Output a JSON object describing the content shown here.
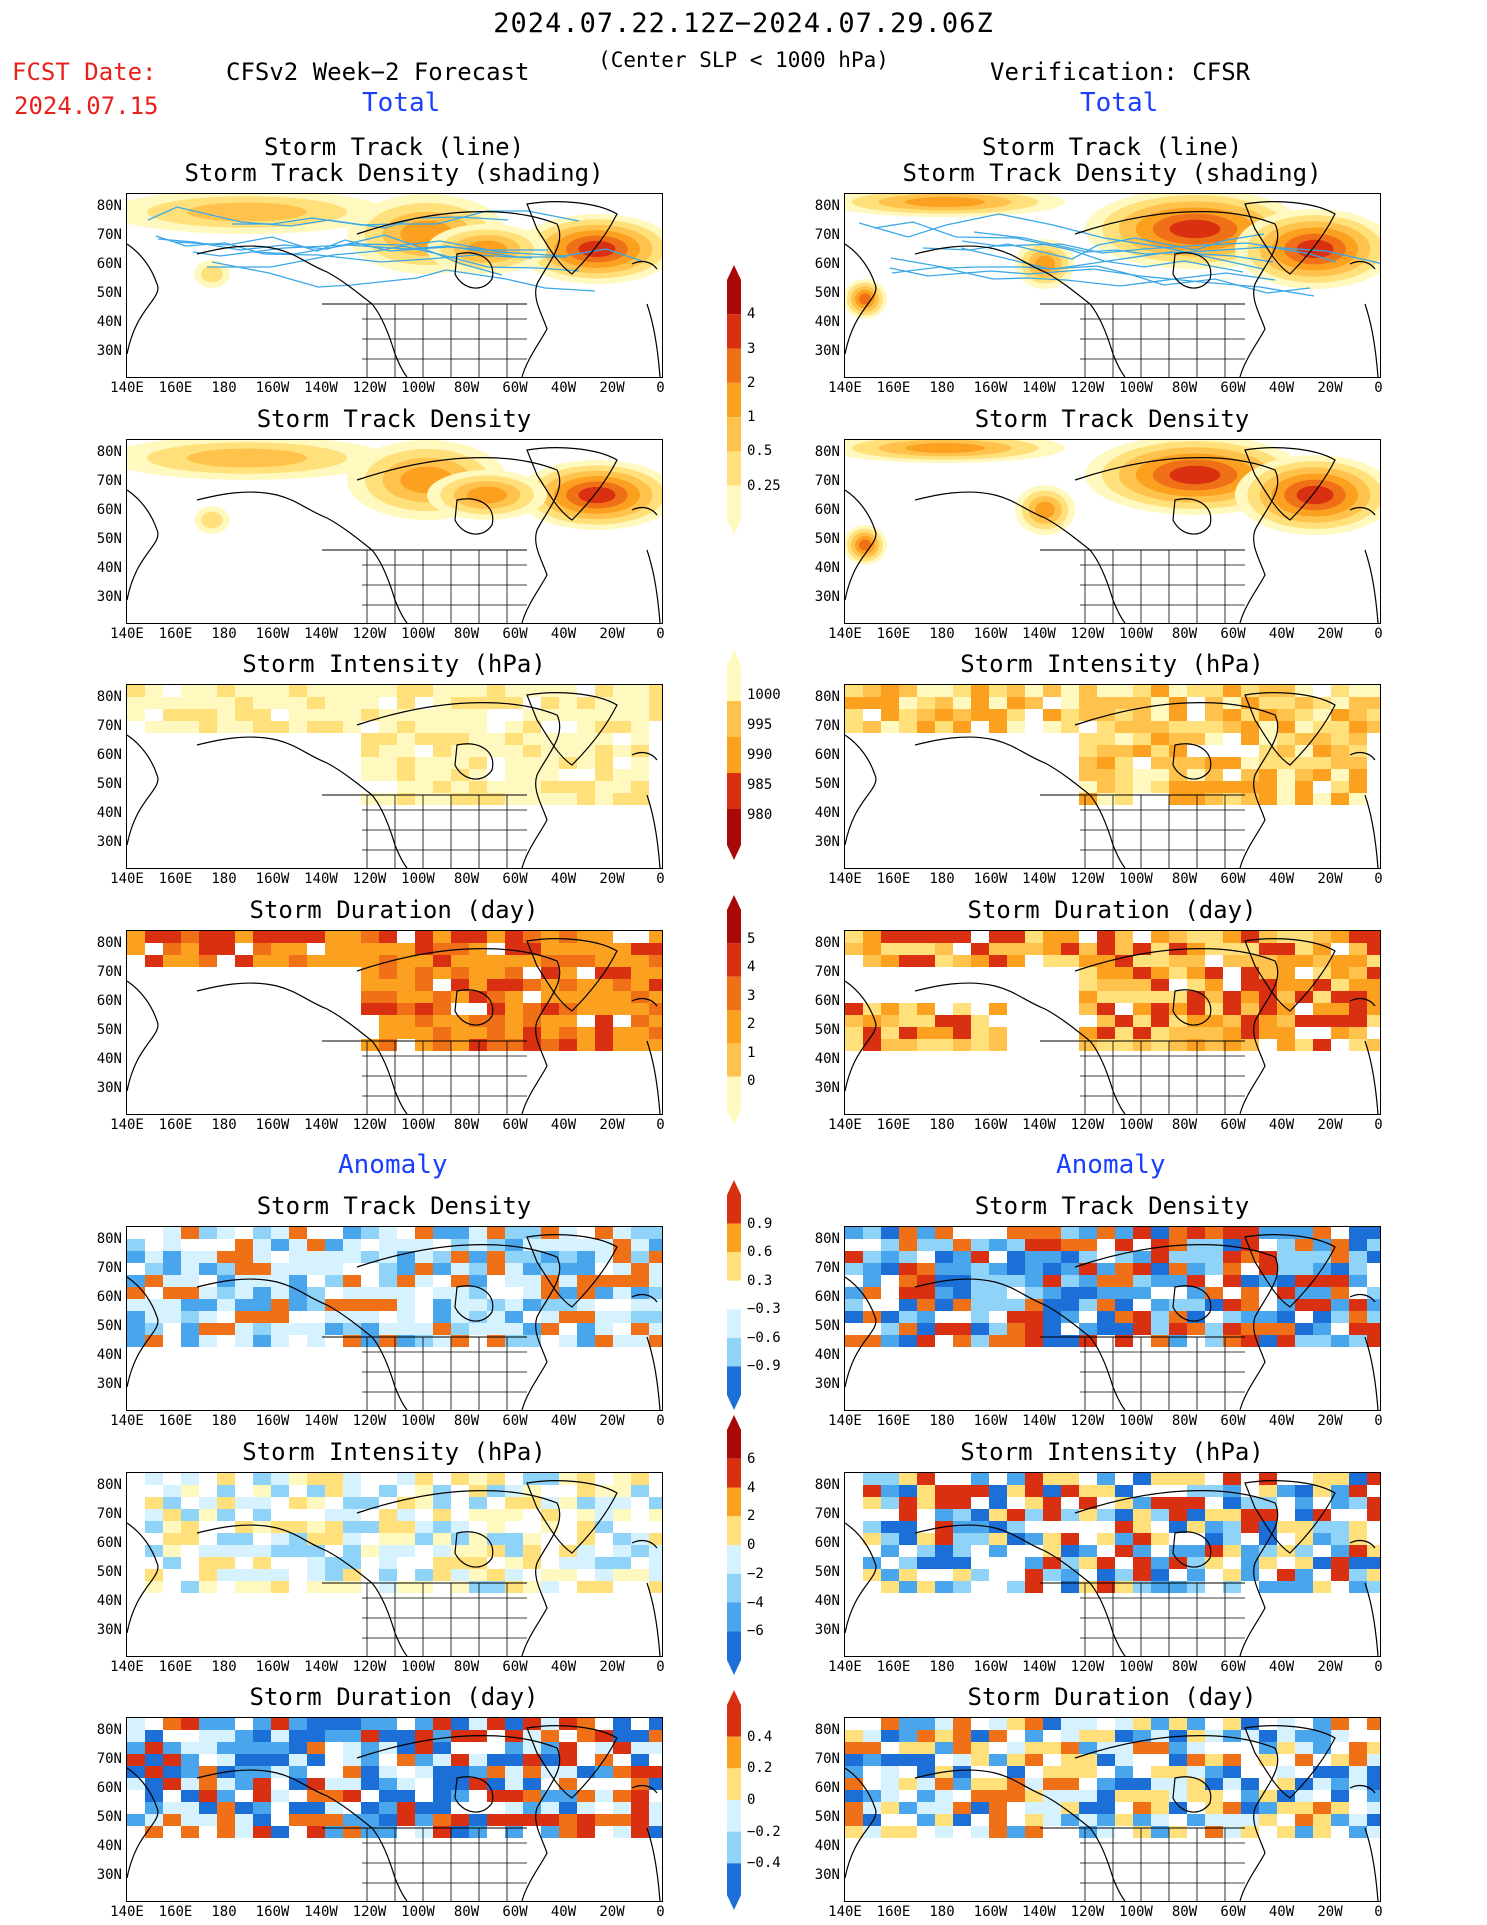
{
  "header": {
    "period": "2024.07.22.12Z−2024.07.29.06Z",
    "subtitle": "(Center SLP < 1000 hPa)",
    "fcst_label": "FCST Date:",
    "fcst_date": "2024.07.15",
    "left_title": "CFSv2 Week−2 Forecast",
    "right_title": "Verification: CFSR",
    "total_label": "Total",
    "anomaly_label": "Anomaly"
  },
  "panel_titles": {
    "track": [
      "Storm Track (line)",
      "Storm Track Density (shading)"
    ],
    "density": "Storm Track Density",
    "intensity": "Storm Intensity (hPa)",
    "duration": "Storm Duration (day)"
  },
  "lat_labels": [
    "80N",
    "70N",
    "60N",
    "50N",
    "40N",
    "30N"
  ],
  "lon_labels": [
    "140E",
    "160E",
    "180",
    "160W",
    "140W",
    "120W",
    "100W",
    "80W",
    "60W",
    "40W",
    "20W",
    "0"
  ],
  "colorbars": {
    "density_total": [
      "4",
      "3",
      "2",
      "1",
      "0.5",
      "0.25"
    ],
    "intensity_total": [
      "1000",
      "995",
      "990",
      "985",
      "980"
    ],
    "duration_total": [
      "5",
      "4",
      "3",
      "2",
      "1",
      "0"
    ],
    "density_anom": [
      "0.9",
      "0.6",
      "0.3",
      "−0.3",
      "−0.6",
      "−0.9"
    ],
    "intensity_anom": [
      "6",
      "4",
      "2",
      "0",
      "−2",
      "−4",
      "−6"
    ],
    "duration_anom": [
      "0.4",
      "0.2",
      "0",
      "−0.2",
      "−0.4"
    ]
  },
  "colors": {
    "fcst_red": "#e8201a",
    "label_blue": "#1a3fff",
    "warm_scale": [
      "#fff9c0",
      "#ffe07a",
      "#ffc34d",
      "#fca020",
      "#f07018",
      "#d83010",
      "#a80808"
    ],
    "cool_scale": [
      "#d6f2ff",
      "#8fd3f8",
      "#4aa6ec",
      "#1c6fd6"
    ]
  }
}
